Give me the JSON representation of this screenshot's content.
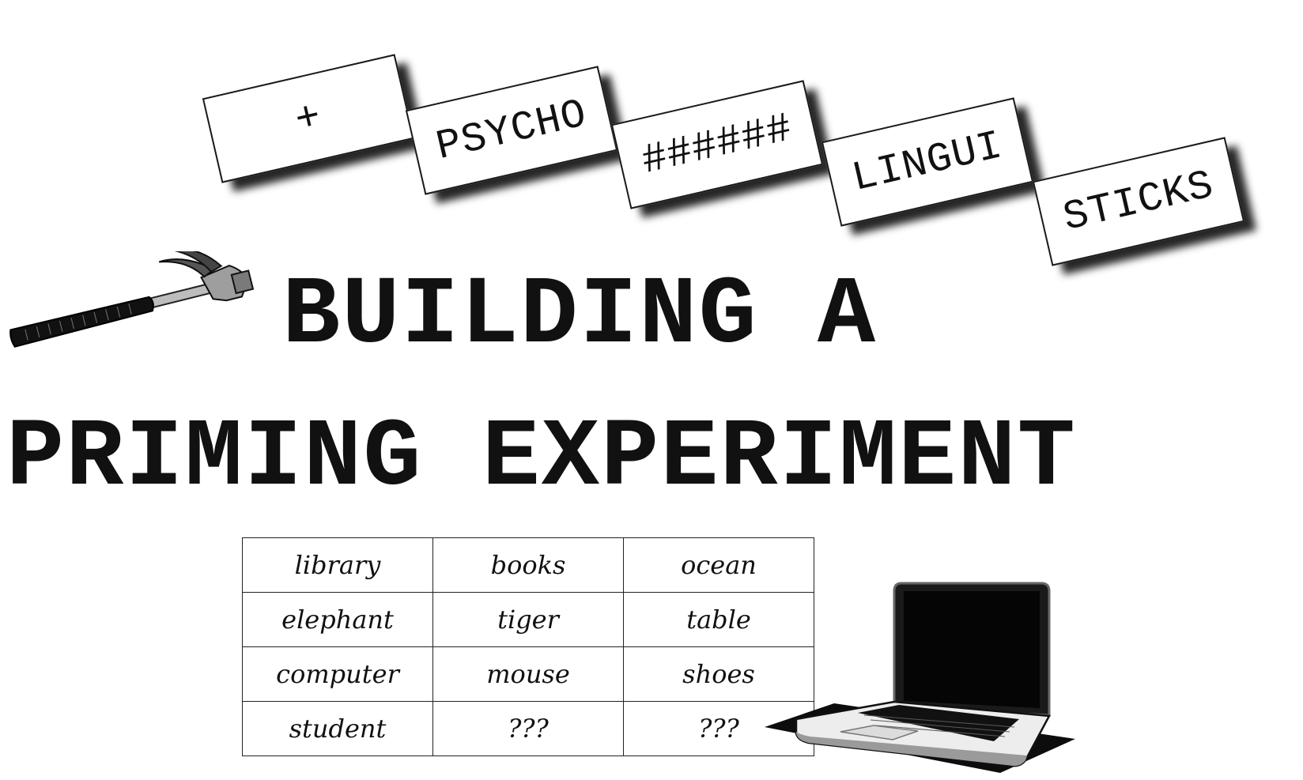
{
  "cards": [
    "+",
    "PSYCHO",
    "######",
    "LINGUI",
    "STICKS"
  ],
  "title": {
    "line1": "BUILDING A",
    "line2": "PRIMING EXPERIMENT"
  },
  "word_table": {
    "rows": [
      [
        "library",
        "books",
        "ocean"
      ],
      [
        "elephant",
        "tiger",
        "table"
      ],
      [
        "computer",
        "mouse",
        "shoes"
      ],
      [
        "student",
        "???",
        "???"
      ]
    ]
  },
  "icons": [
    "hammer-icon",
    "laptop-icon"
  ]
}
